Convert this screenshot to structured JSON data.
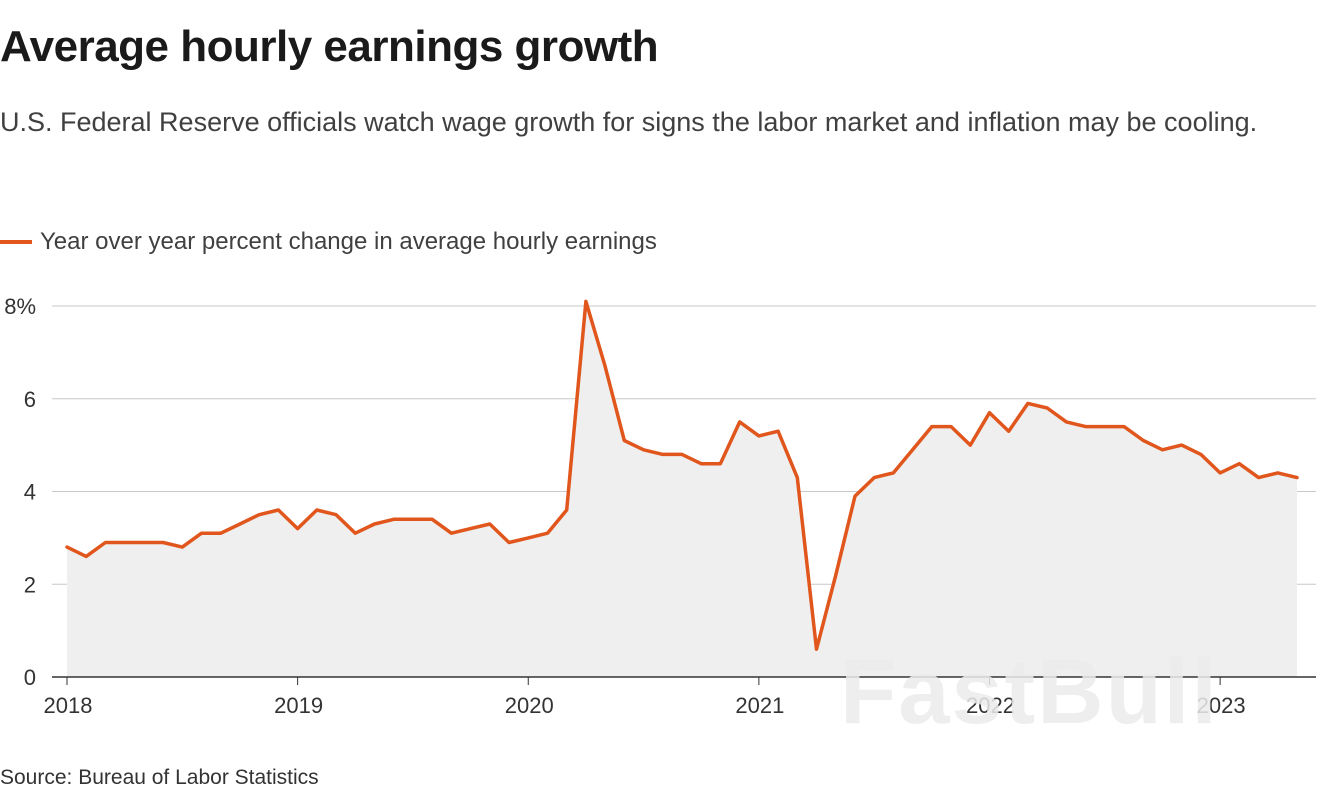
{
  "title": "Average hourly earnings growth",
  "subtitle": "U.S. Federal Reserve officials watch wage growth for signs the labor market and inflation may be cooling.",
  "source": "Source: Bureau of Labor Statistics",
  "watermark": "FastBull",
  "colors": {
    "line": "#e0561c",
    "area": "#efefef",
    "grid": "#c8c8c8",
    "axis": "#333333"
  },
  "chart_data": {
    "type": "area",
    "title": "Average hourly earnings growth",
    "xlabel": "",
    "ylabel": "",
    "ylim": [
      0,
      8
    ],
    "xlim": [
      "2018-01",
      "2023-05"
    ],
    "grid": true,
    "legend_position": "top-left",
    "y_ticks": [
      0,
      2,
      4,
      6,
      8
    ],
    "y_tick_labels": [
      "0",
      "2",
      "4",
      "6",
      "8%"
    ],
    "x_ticks": [
      "2018-01",
      "2019-01",
      "2020-01",
      "2021-01",
      "2022-01",
      "2023-01"
    ],
    "x_tick_labels": [
      "2018",
      "2019",
      "2020",
      "2021",
      "2022",
      "2023"
    ],
    "series": [
      {
        "name": "Year over year percent change in average hourly earnings",
        "x": [
          "2018-01",
          "2018-02",
          "2018-03",
          "2018-04",
          "2018-05",
          "2018-06",
          "2018-07",
          "2018-08",
          "2018-09",
          "2018-10",
          "2018-11",
          "2018-12",
          "2019-01",
          "2019-02",
          "2019-03",
          "2019-04",
          "2019-05",
          "2019-06",
          "2019-07",
          "2019-08",
          "2019-09",
          "2019-10",
          "2019-11",
          "2019-12",
          "2020-01",
          "2020-02",
          "2020-03",
          "2020-04",
          "2020-05",
          "2020-06",
          "2020-07",
          "2020-08",
          "2020-09",
          "2020-10",
          "2020-11",
          "2020-12",
          "2021-01",
          "2021-02",
          "2021-03",
          "2021-04",
          "2021-05",
          "2021-06",
          "2021-07",
          "2021-08",
          "2021-09",
          "2021-10",
          "2021-11",
          "2021-12",
          "2022-01",
          "2022-02",
          "2022-03",
          "2022-04",
          "2022-05",
          "2022-06",
          "2022-07",
          "2022-08",
          "2022-09",
          "2022-10",
          "2022-11",
          "2022-12",
          "2023-01",
          "2023-02",
          "2023-03",
          "2023-04",
          "2023-05"
        ],
        "values": [
          2.8,
          2.6,
          2.9,
          2.9,
          2.9,
          2.9,
          2.8,
          3.1,
          3.1,
          3.3,
          3.5,
          3.6,
          3.2,
          3.6,
          3.5,
          3.1,
          3.3,
          3.4,
          3.4,
          3.4,
          3.1,
          3.2,
          3.3,
          2.9,
          3.0,
          3.1,
          3.6,
          8.1,
          6.7,
          5.1,
          4.9,
          4.8,
          4.8,
          4.6,
          4.6,
          5.5,
          5.2,
          5.3,
          4.3,
          0.6,
          2.2,
          3.9,
          4.3,
          4.4,
          4.9,
          5.4,
          5.4,
          5.0,
          5.7,
          5.3,
          5.9,
          5.8,
          5.5,
          5.4,
          5.4,
          5.4,
          5.1,
          4.9,
          5.0,
          4.8,
          4.4,
          4.6,
          4.3,
          4.4,
          4.3
        ]
      }
    ]
  }
}
